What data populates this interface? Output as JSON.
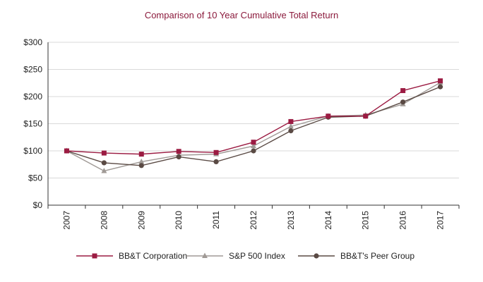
{
  "chart_data": {
    "type": "line",
    "title": "Comparison of 10 Year Cumulative Total Return",
    "xlabel": "",
    "ylabel": "",
    "categories": [
      "2007",
      "2008",
      "2009",
      "2010",
      "2011",
      "2012",
      "2013",
      "2014",
      "2015",
      "2016",
      "2017"
    ],
    "ylim": [
      0,
      300
    ],
    "yticks": [
      0,
      50,
      100,
      150,
      200,
      250,
      300
    ],
    "ytick_labels": [
      "$0",
      "$50",
      "$100",
      "$150",
      "$200",
      "$250",
      "$300"
    ],
    "grid": "horizontal",
    "legend_position": "bottom",
    "series": [
      {
        "name": "BB&T Corporation",
        "marker": "square",
        "color": "#9b1b42",
        "values": [
          100,
          96,
          94,
          99,
          97,
          116,
          154,
          164,
          164,
          211,
          229
        ]
      },
      {
        "name": "S&P 500 Index",
        "marker": "triangle",
        "color": "#a09a96",
        "values": [
          100,
          63,
          80,
          92,
          94,
          109,
          145,
          164,
          166,
          186,
          226
        ]
      },
      {
        "name": "BB&T's Peer Group",
        "marker": "circle",
        "color": "#5a4a44",
        "values": [
          100,
          78,
          73,
          89,
          80,
          100,
          137,
          162,
          164,
          190,
          218
        ]
      }
    ]
  }
}
